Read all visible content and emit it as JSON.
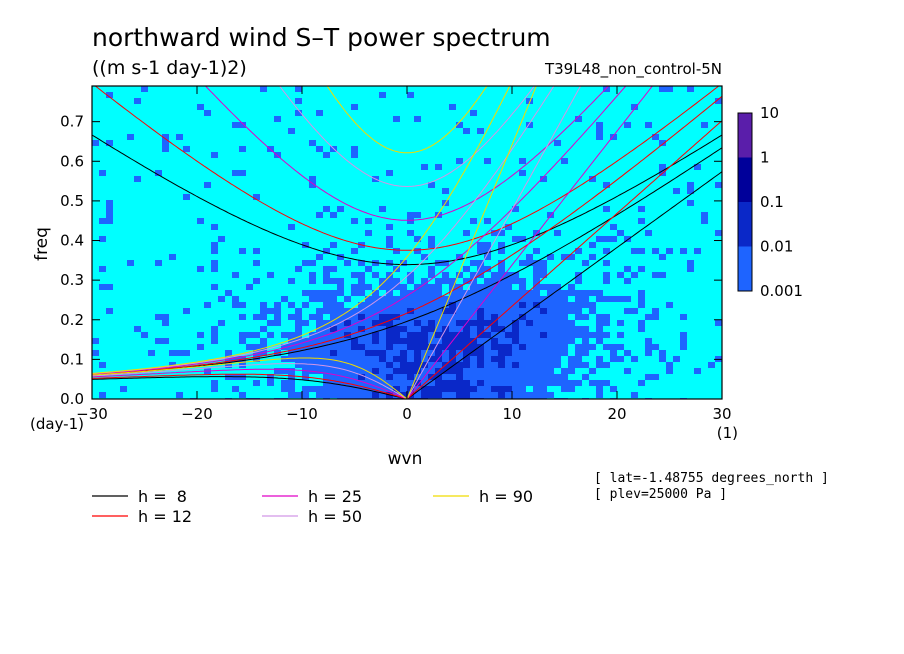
{
  "title": "northward wind S–T power spectrum",
  "units": "((m s-1 day-1)2)",
  "experiment": "T39L48_non_control-5N",
  "notes": [
    "[ lat=-1.48755 degrees_north ]",
    "[ plev=25000 Pa ]"
  ],
  "colors": {
    "cyan": "#00ffff",
    "blue1": "#1e64ff",
    "blue2": "#0a28c8",
    "navy": "#00009a",
    "purple": "#5a1eaa"
  },
  "chart_data": {
    "type": "heatmap",
    "xlabel": "wvn",
    "ylabel": "freq",
    "x_unit": "(1)",
    "y_unit": "(day-1)",
    "xlim": [
      -30,
      30
    ],
    "ylim": [
      0,
      0.79
    ],
    "xticks": [
      "−30",
      "−20",
      "−10",
      "0",
      "10",
      "20",
      "30"
    ],
    "yticks": [
      "0.0",
      "0.1",
      "0.2",
      "0.3",
      "0.4",
      "0.5",
      "0.6",
      "0.7"
    ],
    "colorbar": {
      "levels": [
        "0.001",
        "0.01",
        "0.1",
        "1",
        "10"
      ],
      "colors": [
        "#00ffff",
        "#1e64ff",
        "#0a28c8",
        "#00009a",
        "#5a1eaa"
      ]
    },
    "equivalent_depths": [
      {
        "label": "h =  8",
        "h": 8,
        "color": "#000000"
      },
      {
        "label": "h = 12",
        "h": 12,
        "color": "#ff0000"
      },
      {
        "label": "h = 25",
        "h": 25,
        "color": "#e000c8"
      },
      {
        "label": "h = 50",
        "h": 50,
        "color": "#d296e6"
      },
      {
        "label": "h = 90",
        "h": 90,
        "color": "#f0dc00"
      }
    ]
  }
}
